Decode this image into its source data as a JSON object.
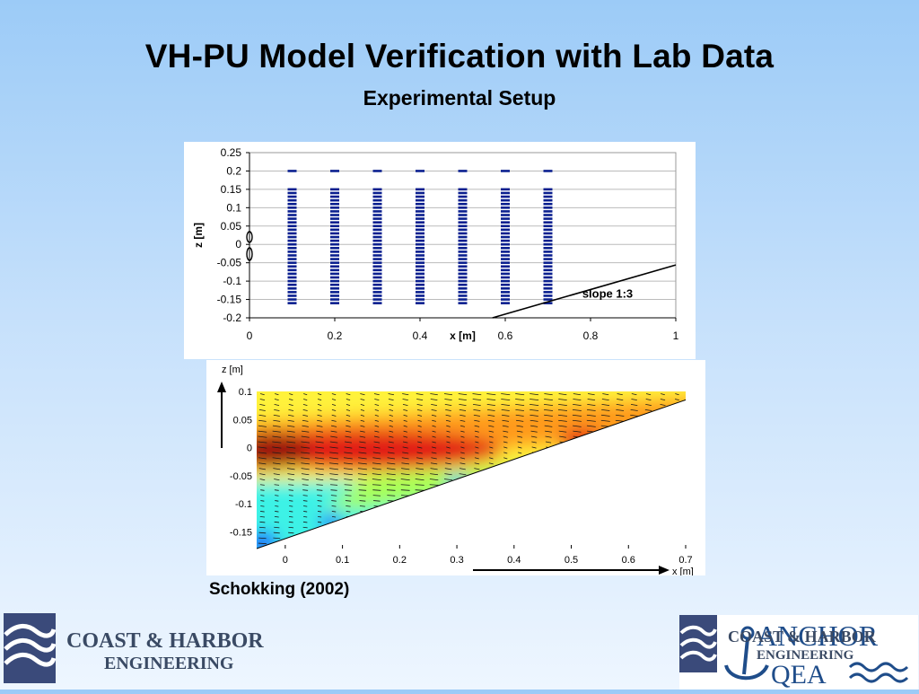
{
  "slide": {
    "title": "VH-PU Model Verification with Lab Data",
    "subtitle": "Experimental Setup",
    "caption": "Schokking (2002)"
  },
  "logos": {
    "left": {
      "line1": "COAST & HARBOR",
      "line2": "ENGINEERING",
      "icon": "wave-logo-icon"
    },
    "right": {
      "overlay_line1": "COAST & HARBOR",
      "overlay_line2": "ENGINEERING",
      "anchor_text": "ANCHOR",
      "qea_text": "QEA",
      "icon": "anchor-logo-icon"
    }
  },
  "chart_data": [
    {
      "type": "scatter",
      "title": "",
      "xlabel": "x [m]",
      "ylabel": "z [m]",
      "xlim": [
        0,
        1
      ],
      "ylim": [
        -0.2,
        0.25
      ],
      "xticks": [
        "0",
        "0.2",
        "0.4",
        "0.6",
        "0.8",
        "1"
      ],
      "xtick_values": [
        0,
        0.2,
        0.4,
        0.6,
        0.8,
        1
      ],
      "yticks": [
        "0.25",
        "0.2",
        "0.15",
        "0.1",
        "0.05",
        "0",
        "-0.05",
        "-0.1",
        "-0.15",
        "-0.2"
      ],
      "ytick_values": [
        0.25,
        0.2,
        0.15,
        0.1,
        0.05,
        0,
        -0.05,
        -0.1,
        -0.15,
        -0.2
      ],
      "grid": "horizontal",
      "probe_columns_x": [
        0.1,
        0.2,
        0.3,
        0.4,
        0.5,
        0.6,
        0.7
      ],
      "probe_z_top": 0.2,
      "probe_z_bottom": -0.16,
      "probe_z_step": 0.01,
      "probe_z_gap": [
        0.15,
        0.2
      ],
      "slope_line": {
        "x": [
          0.57,
          1.0
        ],
        "z": [
          -0.2,
          -0.056
        ]
      },
      "annotation": "slope 1:3"
    },
    {
      "type": "heatmap",
      "title": "",
      "xlabel": "x [m]",
      "ylabel": "z [m]",
      "xlim": [
        -0.05,
        0.7
      ],
      "ylim": [
        -0.18,
        0.1
      ],
      "xticks": [
        "0",
        "0.1",
        "0.2",
        "0.3",
        "0.4",
        "0.5",
        "0.6",
        "0.7"
      ],
      "xtick_values": [
        0,
        0.1,
        0.2,
        0.3,
        0.4,
        0.5,
        0.6,
        0.7
      ],
      "yticks": [
        "0.1",
        "0.05",
        "0",
        "-0.05",
        "-0.1",
        "-0.15"
      ],
      "ytick_values": [
        0.1,
        0.05,
        0,
        -0.05,
        -0.1,
        -0.15
      ],
      "bed_line": {
        "x": [
          -0.05,
          0.7
        ],
        "z": [
          -0.18,
          0.085
        ]
      },
      "colormap": [
        "#1c3cff",
        "#23b8ff",
        "#3df2e6",
        "#a6ff5a",
        "#fff23a",
        "#ff9a1f",
        "#e21b14",
        "#9c0a0a"
      ],
      "core_center": {
        "x": 0.05,
        "z": -0.005
      },
      "secondary_maximum": {
        "x": 0.52,
        "z": 0.01
      },
      "low_velocity_patches": [
        {
          "x": -0.04,
          "z": -0.17
        },
        {
          "x": 0.08,
          "z": -0.135
        },
        {
          "x": 0.3,
          "z": -0.065
        }
      ]
    }
  ]
}
